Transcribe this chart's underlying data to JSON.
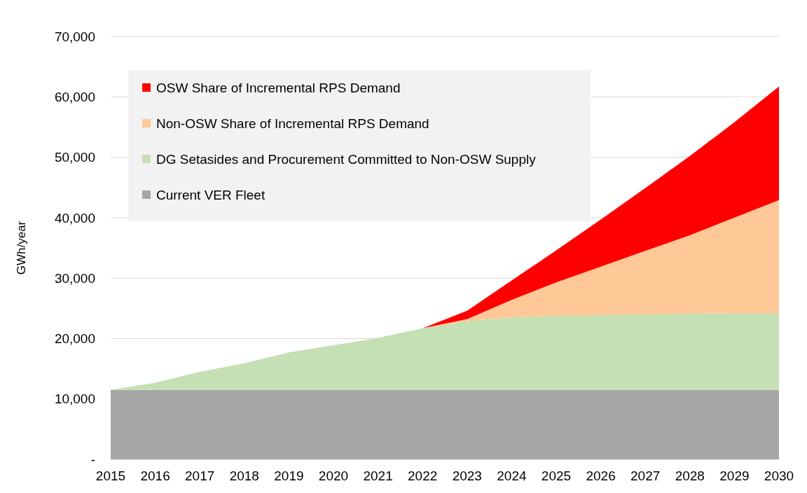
{
  "chart_data": {
    "type": "area",
    "stacked": true,
    "ylabel": "GWh/year",
    "categories": [
      "2015",
      "2016",
      "2017",
      "2018",
      "2019",
      "2020",
      "2021",
      "2022",
      "2023",
      "2024",
      "2025",
      "2026",
      "2027",
      "2028",
      "2029",
      "2030"
    ],
    "series": [
      {
        "name": "Current VER Fleet",
        "color": "#a6a6a6",
        "values": [
          11500,
          11500,
          11500,
          11500,
          11500,
          11500,
          11500,
          11500,
          11500,
          11500,
          11500,
          11500,
          11500,
          11500,
          11500,
          11500
        ]
      },
      {
        "name": "DG Setasides and Procurement Committed to Non-OSW Supply",
        "color": "#c5e0b4",
        "values": [
          0,
          1200,
          3000,
          4400,
          6200,
          7400,
          8600,
          10200,
          11400,
          12000,
          12300,
          12400,
          12500,
          12600,
          12700,
          12700
        ]
      },
      {
        "name": "Non-OSW Share of Incremental RPS Demand",
        "color": "#ffc896",
        "values": [
          0,
          0,
          0,
          0,
          0,
          0,
          0,
          0,
          300,
          2900,
          5500,
          8000,
          10500,
          13000,
          15800,
          18700
        ]
      },
      {
        "name": "OSW Share of Incremental RPS Demand",
        "color": "#ff0000",
        "values": [
          0,
          0,
          0,
          0,
          0,
          0,
          0,
          0,
          1400,
          3200,
          5300,
          7800,
          10400,
          13100,
          15800,
          18800
        ]
      }
    ],
    "ylim": [
      0,
      70000
    ],
    "yticks": [
      {
        "value": 0,
        "label": "-"
      },
      {
        "value": 10000,
        "label": "10,000"
      },
      {
        "value": 20000,
        "label": "20,000"
      },
      {
        "value": 30000,
        "label": "30,000"
      },
      {
        "value": 40000,
        "label": "40,000"
      },
      {
        "value": 50000,
        "label": "50,000"
      },
      {
        "value": 60000,
        "label": "60,000"
      },
      {
        "value": 70000,
        "label": "70,000"
      }
    ],
    "grid": "y",
    "legend": "top left"
  }
}
